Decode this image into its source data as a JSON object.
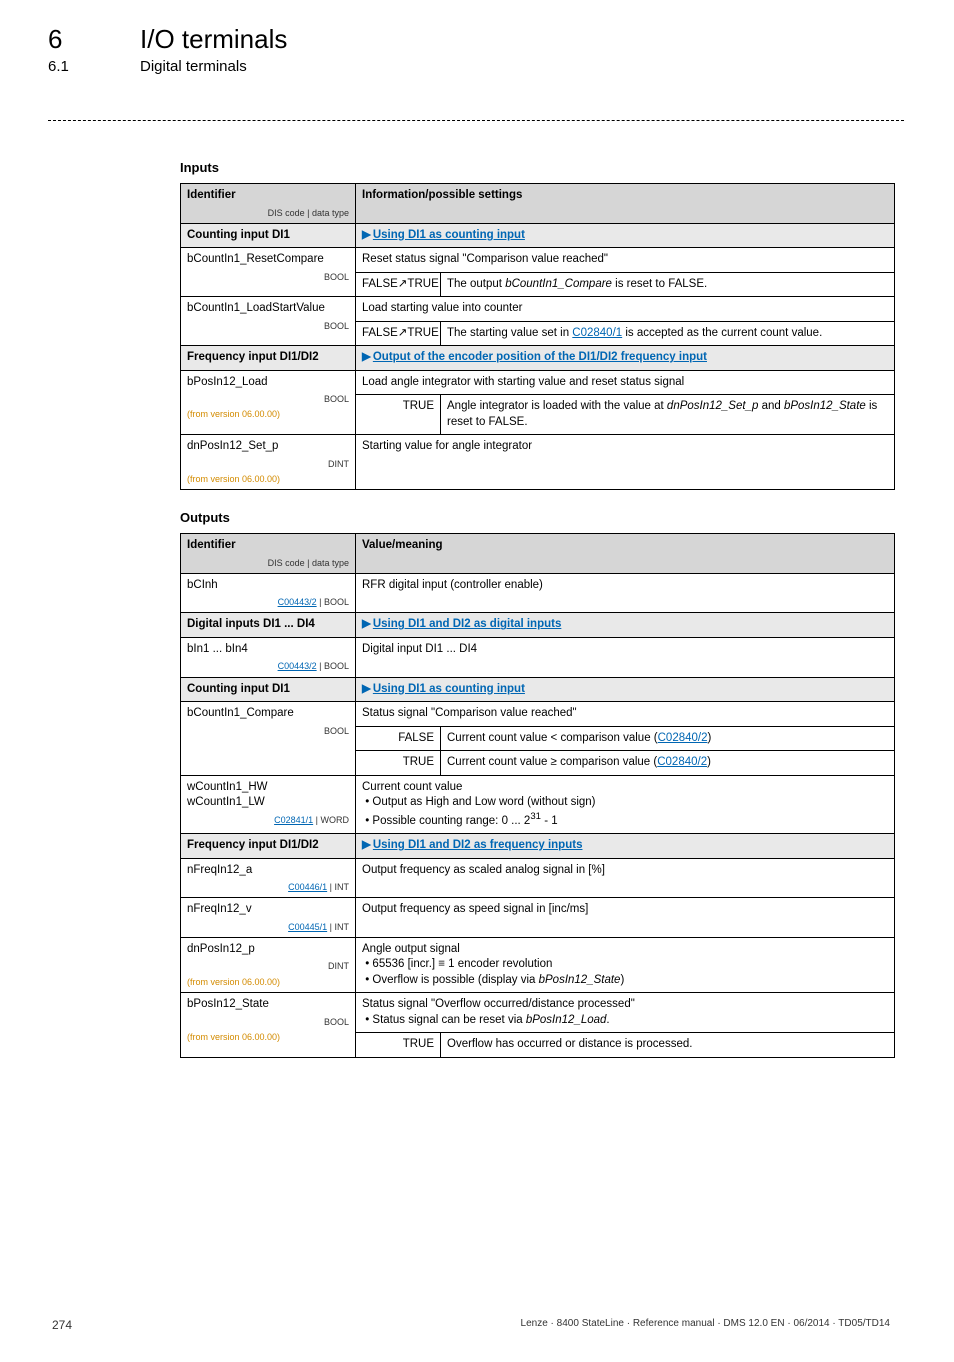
{
  "header": {
    "chapter_num": "6",
    "chapter_title": "I/O terminals",
    "section_num": "6.1",
    "section_title": "Digital terminals"
  },
  "inputs": {
    "heading": "Inputs",
    "col_identifier": "Identifier",
    "col_dis": "DIS code | data type",
    "col_info": "Information/possible settings",
    "rows": {
      "counting_di1": {
        "label": "Counting input DI1",
        "link": "Using DI1 as counting input"
      },
      "reset_compare": {
        "label": "bCountIn1_ResetCompare",
        "dis": "BOOL",
        "desc": "Reset status signal \"Comparison value reached\"",
        "sub_k": "FALSE↗TRUE",
        "sub_v_pre": "The output ",
        "sub_v_ital": "bCountIn1_Compare",
        "sub_v_post": " is reset to FALSE."
      },
      "load_start": {
        "label": "bCountIn1_LoadStartValue",
        "dis": "BOOL",
        "desc": "Load starting value into counter",
        "sub_k": "FALSE↗TRUE",
        "sub_v_pre": "The starting value set in ",
        "sub_v_link": "C02840/1",
        "sub_v_post": " is accepted as the current count value."
      },
      "freq": {
        "label": "Frequency input DI1/DI2",
        "link": "Output of the encoder position of the DI1/DI2 frequency input"
      },
      "posload": {
        "label": "bPosIn12_Load",
        "dis": "BOOL",
        "from": "(from version 06.00.00)",
        "desc": "Load angle integrator with starting value and reset status signal",
        "sub_k": "TRUE",
        "sub_v_pre": "Angle integrator is loaded with the value at ",
        "sub_v_ital1": "dnPosIn12_Set_p",
        "sub_v_mid": " and ",
        "sub_v_ital2": "bPosIn12_State",
        "sub_v_post": " is reset to FALSE."
      },
      "setp": {
        "label": "dnPosIn12_Set_p",
        "dis": "DINT",
        "from": "(from version 06.00.00)",
        "desc": "Starting value for angle integrator"
      }
    }
  },
  "outputs": {
    "heading": "Outputs",
    "col_identifier": "Identifier",
    "col_dis": "DIS code | data type",
    "col_info": "Value/meaning",
    "rows": {
      "bcinh": {
        "label": "bCInh",
        "dis_link": "C00443/2",
        "dis_post": " | BOOL",
        "desc": "RFR digital input (controller enable)"
      },
      "di14": {
        "label": "Digital inputs DI1 ... DI4",
        "link": "Using DI1 and DI2 as digital inputs"
      },
      "bin14": {
        "label": "bIn1 ... bIn4",
        "dis_link": "C00443/2",
        "dis_post": " | BOOL",
        "desc": "Digital input DI1 ... DI4"
      },
      "count_di1": {
        "label": "Counting input DI1",
        "link": "Using DI1 as counting input"
      },
      "compare": {
        "label": "bCountIn1_Compare",
        "dis": "BOOL",
        "desc": "Status signal \"Comparison value reached\"",
        "false_k": "FALSE",
        "false_v_pre": "Current count value < comparison value (",
        "false_v_link": "C02840/2",
        "false_v_post": ")",
        "true_k": "TRUE",
        "true_v_pre": "Current count value ≥ comparison value (",
        "true_v_link": "C02840/2",
        "true_v_post": ")"
      },
      "hwlw": {
        "label1": "wCountIn1_HW",
        "label2": "wCountIn1_LW",
        "dis_link": "C02841/1",
        "dis_post": " | WORD",
        "desc1": "Current count value",
        "desc2": "• Output as High and Low word (without sign)",
        "desc3_pre": "• Possible counting range: 0 ... 2",
        "desc3_exp": "31",
        "desc3_post": " - 1"
      },
      "freq": {
        "label": "Frequency input DI1/DI2",
        "link": "Using DI1 and DI2 as frequency inputs"
      },
      "nfa": {
        "label": "nFreqIn12_a",
        "dis_link": "C00446/1",
        "dis_post": " | INT",
        "desc": "Output frequency as scaled analog signal in [%]"
      },
      "nfv": {
        "label": "nFreqIn12_v",
        "dis_link": "C00445/1",
        "dis_post": " | INT",
        "desc": "Output frequency as speed signal in [inc/ms]"
      },
      "dnpos": {
        "label": "dnPosIn12_p",
        "dis": "DINT",
        "from": "(from version 06.00.00)",
        "desc1": "Angle output signal",
        "desc2": "• 65536 [incr.] ≡ 1 encoder revolution",
        "desc3_pre": "• Overflow is possible (display via ",
        "desc3_ital": "bPosIn12_State",
        "desc3_post": ")"
      },
      "bstate": {
        "label": "bPosIn12_State",
        "dis": "BOOL",
        "from": "(from version 06.00.00)",
        "desc1": "Status signal \"Overflow occurred/distance processed\"",
        "desc2_pre": "• Status signal can be reset via ",
        "desc2_ital": "bPosIn12_Load",
        "desc2_post": ".",
        "true_k": "TRUE",
        "true_v": "Overflow has occurred or distance is processed."
      }
    }
  },
  "footer": {
    "page": "274",
    "right": "Lenze · 8400 StateLine · Reference manual · DMS 12.0 EN · 06/2014 · TD05/TD14"
  }
}
